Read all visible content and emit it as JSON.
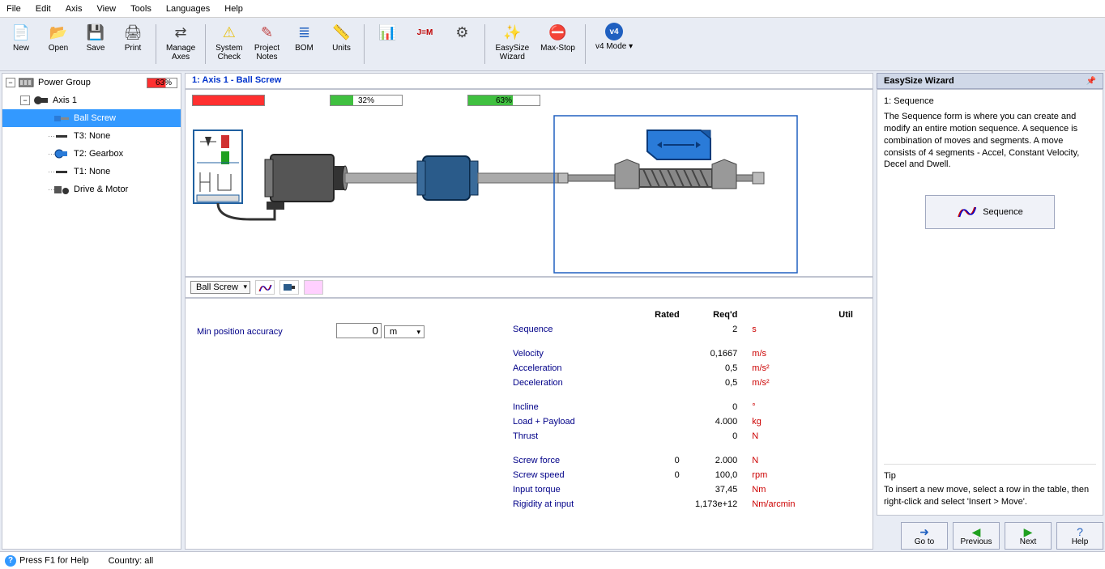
{
  "menu": [
    "File",
    "Edit",
    "Axis",
    "View",
    "Tools",
    "Languages",
    "Help"
  ],
  "toolbar": [
    {
      "label": "New",
      "icon": "📄",
      "color": "#444"
    },
    {
      "label": "Open",
      "icon": "📂",
      "color": "#e8a030"
    },
    {
      "label": "Save",
      "icon": "💾",
      "color": "#2060c0"
    },
    {
      "label": "Print",
      "icon": "🖨",
      "color": "#444"
    },
    {
      "sep": true
    },
    {
      "label": "Manage\nAxes",
      "icon": "⇄",
      "color": "#444"
    },
    {
      "sep": true
    },
    {
      "label": "System\nCheck",
      "icon": "⚠",
      "color": "#e8c010"
    },
    {
      "label": "Project\nNotes",
      "icon": "✎",
      "color": "#c04040"
    },
    {
      "label": "BOM",
      "icon": "≣",
      "color": "#2060c0"
    },
    {
      "label": "Units",
      "icon": "📏",
      "color": "#e8a030"
    },
    {
      "sep": true
    },
    {
      "label": "",
      "icon": "📊",
      "color": "#2060c0"
    },
    {
      "label": "",
      "icon": "J=M",
      "color": "#c00000",
      "fs": "10px"
    },
    {
      "label": "",
      "icon": "⚙",
      "color": "#444"
    },
    {
      "sep": true
    },
    {
      "label": "EasySize\nWizard",
      "icon": "✨",
      "color": "#444"
    },
    {
      "label": "Max-Stop",
      "icon": "⛔",
      "color": "#d03030"
    },
    {
      "sep": true
    },
    {
      "label": "v4 Mode ▾",
      "icon": "v4",
      "color": "#fff",
      "bg": "#2060c0",
      "round": true,
      "fs": "10px"
    }
  ],
  "tree": {
    "root": {
      "label": "Power Group",
      "pct": "63%",
      "pct_class": "red"
    },
    "axis": {
      "label": "Axis 1"
    },
    "items": [
      {
        "label": "Ball Screw",
        "selected": true,
        "indent": 56
      },
      {
        "label": "T3: None",
        "indent": 56
      },
      {
        "label": "T2: Gearbox",
        "indent": 56
      },
      {
        "label": "T1: None",
        "indent": 56
      },
      {
        "label": "Drive & Motor",
        "indent": 56
      }
    ]
  },
  "center": {
    "title": "1: Axis 1 - Ball Screw",
    "bars": [
      {
        "fill": 100,
        "color": "#ff3030",
        "text": ""
      },
      {
        "fill": 32,
        "color": "#40c040",
        "text": "32%"
      },
      {
        "fill": 63,
        "color": "#40c040",
        "text": "63%"
      }
    ],
    "tab_combo": "Ball Screw"
  },
  "params": {
    "left_label": "Min position accuracy",
    "left_value": "0",
    "left_unit": "m",
    "headers": [
      "Rated",
      "Req'd",
      "Util"
    ],
    "rows": [
      {
        "label": "Sequence",
        "rated": "",
        "reqd": "2",
        "unit": "s"
      },
      {
        "spacer": true
      },
      {
        "label": "Velocity",
        "rated": "",
        "reqd": "0,1667",
        "unit": "m/s"
      },
      {
        "label": "Acceleration",
        "rated": "",
        "reqd": "0,5",
        "unit": "m/s²"
      },
      {
        "label": "Deceleration",
        "rated": "",
        "reqd": "0,5",
        "unit": "m/s²"
      },
      {
        "spacer": true
      },
      {
        "label": "Incline",
        "rated": "",
        "reqd": "0",
        "unit": "°"
      },
      {
        "label": "Load + Payload",
        "rated": "",
        "reqd": "4.000",
        "unit": "kg"
      },
      {
        "label": "Thrust",
        "rated": "",
        "reqd": "0",
        "unit": "N"
      },
      {
        "spacer": true
      },
      {
        "label": "Screw force",
        "rated": "0",
        "reqd": "2.000",
        "unit": "N"
      },
      {
        "label": "Screw speed",
        "rated": "0",
        "reqd": "100,0",
        "unit": "rpm"
      },
      {
        "label": "Input torque",
        "rated": "",
        "reqd": "37,45",
        "unit": "Nm"
      },
      {
        "label": "Rigidity at input",
        "rated": "",
        "reqd": "1,173e+12",
        "unit": "Nm/arcmin"
      }
    ]
  },
  "wizard": {
    "title": "EasySize Wizard",
    "step": "1: Sequence",
    "text": "The Sequence form is where you can create and modify an entire motion sequence. A sequence is combination of moves and segments. A move consists of 4 segments - Accel, Constant Velocity, Decel and Dwell.",
    "seq_btn": "Sequence",
    "tip_title": "Tip",
    "tip_text": "To insert a new move, select a row in the table, then right-click and select 'Insert > Move'.",
    "nav": [
      {
        "label": "Go to",
        "icon": "➜",
        "color": "#2060c0"
      },
      {
        "label": "Previous",
        "icon": "◀",
        "color": "#20a020"
      },
      {
        "label": "Next",
        "icon": "▶",
        "color": "#20a020"
      },
      {
        "label": "Help",
        "icon": "?",
        "color": "#2060c0"
      }
    ]
  },
  "status": {
    "help": "Press F1 for Help",
    "country": "Country: all"
  }
}
